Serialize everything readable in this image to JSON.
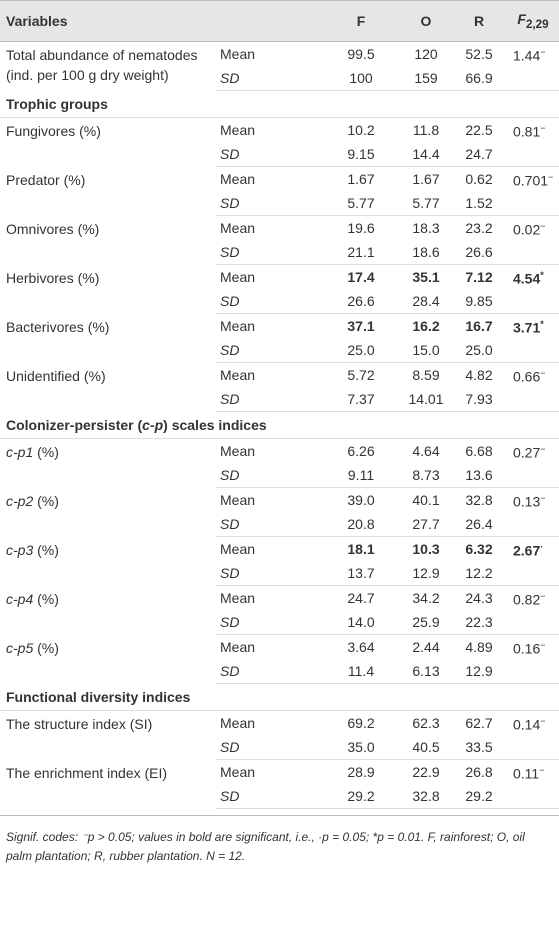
{
  "header": {
    "variables": "Variables",
    "sites": [
      "F",
      "O",
      "R"
    ],
    "stat_symbol": "F",
    "stat_subscript": "2,29"
  },
  "stat_labels": [
    "Mean",
    "SD"
  ],
  "rows": [
    {
      "label": [
        "Total abundance of nematodes (ind. per 100 g dry weight)"
      ],
      "mean": [
        "99.5",
        "120",
        "52.5"
      ],
      "sd": [
        "100",
        "159",
        "66.9"
      ],
      "f": "1.44",
      "sig": "−"
    },
    {
      "section": [
        "Trophic groups"
      ]
    },
    {
      "label": [
        "Fungivores (%)"
      ],
      "mean": [
        "10.2",
        "11.8",
        "22.5"
      ],
      "sd": [
        "9.15",
        "14.4",
        "24.7"
      ],
      "f": "0.81",
      "sig": "−"
    },
    {
      "label": [
        "Predator (%)"
      ],
      "mean": [
        "1.67",
        "1.67",
        "0.62"
      ],
      "sd": [
        "5.77",
        "5.77",
        "1.52"
      ],
      "f": "0.701",
      "sig": "−"
    },
    {
      "label": [
        "Omnivores (%)"
      ],
      "mean": [
        "19.6",
        "18.3",
        "23.2"
      ],
      "sd": [
        "21.1",
        "18.6",
        "26.6"
      ],
      "f": "0.02",
      "sig": "−"
    },
    {
      "label": [
        "Herbivores (%)"
      ],
      "mean": [
        "17.4",
        "35.1",
        "7.12"
      ],
      "sd": [
        "26.6",
        "28.4",
        "9.85"
      ],
      "f": "4.54",
      "sig": "*",
      "bold": true
    },
    {
      "label": [
        "Bacterivores (%)"
      ],
      "mean": [
        "37.1",
        "16.2",
        "16.7"
      ],
      "sd": [
        "25.0",
        "15.0",
        "25.0"
      ],
      "f": "3.71",
      "sig": "*",
      "bold": true
    },
    {
      "label": [
        "Unidentified (%)"
      ],
      "mean": [
        "5.72",
        "8.59",
        "4.82"
      ],
      "sd": [
        "7.37",
        "14.01",
        "7.93"
      ],
      "f": "0.66",
      "sig": "−"
    },
    {
      "section": [
        "Colonizer-persister (",
        "c-p",
        ") scales indices"
      ]
    },
    {
      "label": [
        "",
        "c-p1",
        " (%)"
      ],
      "mean": [
        "6.26",
        "4.64",
        "6.68"
      ],
      "sd": [
        "9.11",
        "8.73",
        "13.6"
      ],
      "f": "0.27",
      "sig": "−"
    },
    {
      "label": [
        "",
        "c-p2",
        " (%)"
      ],
      "mean": [
        "39.0",
        "40.1",
        "32.8"
      ],
      "sd": [
        "20.8",
        "27.7",
        "26.4"
      ],
      "f": "0.13",
      "sig": "−"
    },
    {
      "label": [
        "",
        "c-p3",
        " (%)"
      ],
      "mean": [
        "18.1",
        "10.3",
        "6.32"
      ],
      "sd": [
        "13.7",
        "12.9",
        "12.2"
      ],
      "f": "2.67",
      "sig": "·",
      "bold": true
    },
    {
      "label": [
        "",
        "c-p4",
        " (%)"
      ],
      "mean": [
        "24.7",
        "34.2",
        "24.3"
      ],
      "sd": [
        "14.0",
        "25.9",
        "22.3"
      ],
      "f": "0.82",
      "sig": "−"
    },
    {
      "label": [
        "",
        "c-p5",
        " (%)"
      ],
      "mean": [
        "3.64",
        "2.44",
        "4.89"
      ],
      "sd": [
        "11.4",
        "6.13",
        "12.9"
      ],
      "f": "0.16",
      "sig": "−"
    },
    {
      "section": [
        "Functional diversity indices"
      ]
    },
    {
      "label": [
        "The structure index (SI)"
      ],
      "mean": [
        "69.2",
        "62.3",
        "62.7"
      ],
      "sd": [
        "35.0",
        "40.5",
        "33.5"
      ],
      "f": "0.14",
      "sig": "−"
    },
    {
      "label": [
        "The enrichment index (EI)"
      ],
      "mean": [
        "28.9",
        "22.9",
        "26.8"
      ],
      "sd": [
        "29.2",
        "32.8",
        "29.2"
      ],
      "f": "0.11",
      "sig": "−"
    }
  ],
  "footnote": "Signif. codes: ⁻p > 0.05; values in bold are significant, i.e., ·p = 0.05; *p = 0.01. F, rainforest; O, oil palm plantation; R, rubber plantation. N = 12."
}
